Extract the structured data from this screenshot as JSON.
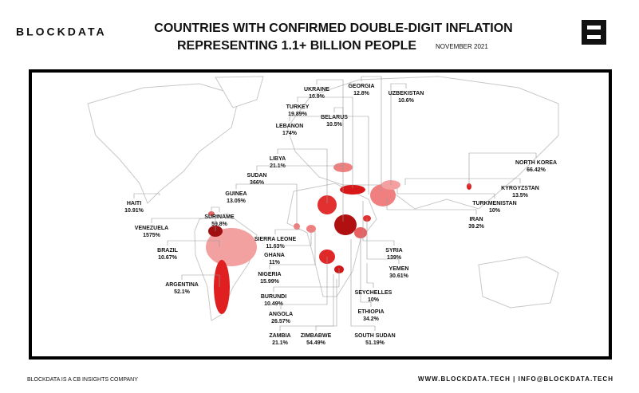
{
  "header": {
    "brand": "BLOCKDATA",
    "title_line1": "COUNTRIES WITH CONFIRMED DOUBLE-DIGIT INFLATION",
    "title_line2": "REPRESENTING 1.1+ BILLION PEOPLE",
    "date": "NOVEMBER 2021"
  },
  "countries": [
    {
      "name": "UKRAINE",
      "inflation": "10.9%"
    },
    {
      "name": "GEORGIA",
      "inflation": "12.8%"
    },
    {
      "name": "UZBEKISTAN",
      "inflation": "10.6%"
    },
    {
      "name": "TURKEY",
      "inflation": "19.89%"
    },
    {
      "name": "BELARUS",
      "inflation": "10.5%"
    },
    {
      "name": "LEBANON",
      "inflation": "174%"
    },
    {
      "name": "LIBYA",
      "inflation": "21.1%"
    },
    {
      "name": "SUDAN",
      "inflation": "366%"
    },
    {
      "name": "GUINEA",
      "inflation": "13.05%"
    },
    {
      "name": "HAITI",
      "inflation": "10.91%"
    },
    {
      "name": "SURINAME",
      "inflation": "59.8%"
    },
    {
      "name": "VENEZUELA",
      "inflation": "1575%"
    },
    {
      "name": "SIERRA LEONE",
      "inflation": "11.63%"
    },
    {
      "name": "BRAZIL",
      "inflation": "10.67%"
    },
    {
      "name": "GHANA",
      "inflation": "11%"
    },
    {
      "name": "NIGERIA",
      "inflation": "15.99%"
    },
    {
      "name": "ARGENTINA",
      "inflation": "52.1%"
    },
    {
      "name": "BURUNDI",
      "inflation": "10.49%"
    },
    {
      "name": "ANGOLA",
      "inflation": "26.57%"
    },
    {
      "name": "ZAMBIA",
      "inflation": "21.1%"
    },
    {
      "name": "ZIMBABWE",
      "inflation": "54.49%"
    },
    {
      "name": "SOUTH SUDAN",
      "inflation": "51.19%"
    },
    {
      "name": "ETHIOPIA",
      "inflation": "34.2%"
    },
    {
      "name": "SEYCHELLES",
      "inflation": "10%"
    },
    {
      "name": "YEMEN",
      "inflation": "30.61%"
    },
    {
      "name": "SYRIA",
      "inflation": "139%"
    },
    {
      "name": "IRAN",
      "inflation": "39.2%"
    },
    {
      "name": "TURKMENISTAN",
      "inflation": "10%"
    },
    {
      "name": "KYRGYZSTAN",
      "inflation": "13.5%"
    },
    {
      "name": "NORTH KOREA",
      "inflation": "66.42%"
    }
  ],
  "footer": {
    "left": "BLOCKDATA IS A CB INSIGHTS COMPANY",
    "right": "WWW.BLOCKDATA.TECH | INFO@BLOCKDATA.TECH"
  }
}
